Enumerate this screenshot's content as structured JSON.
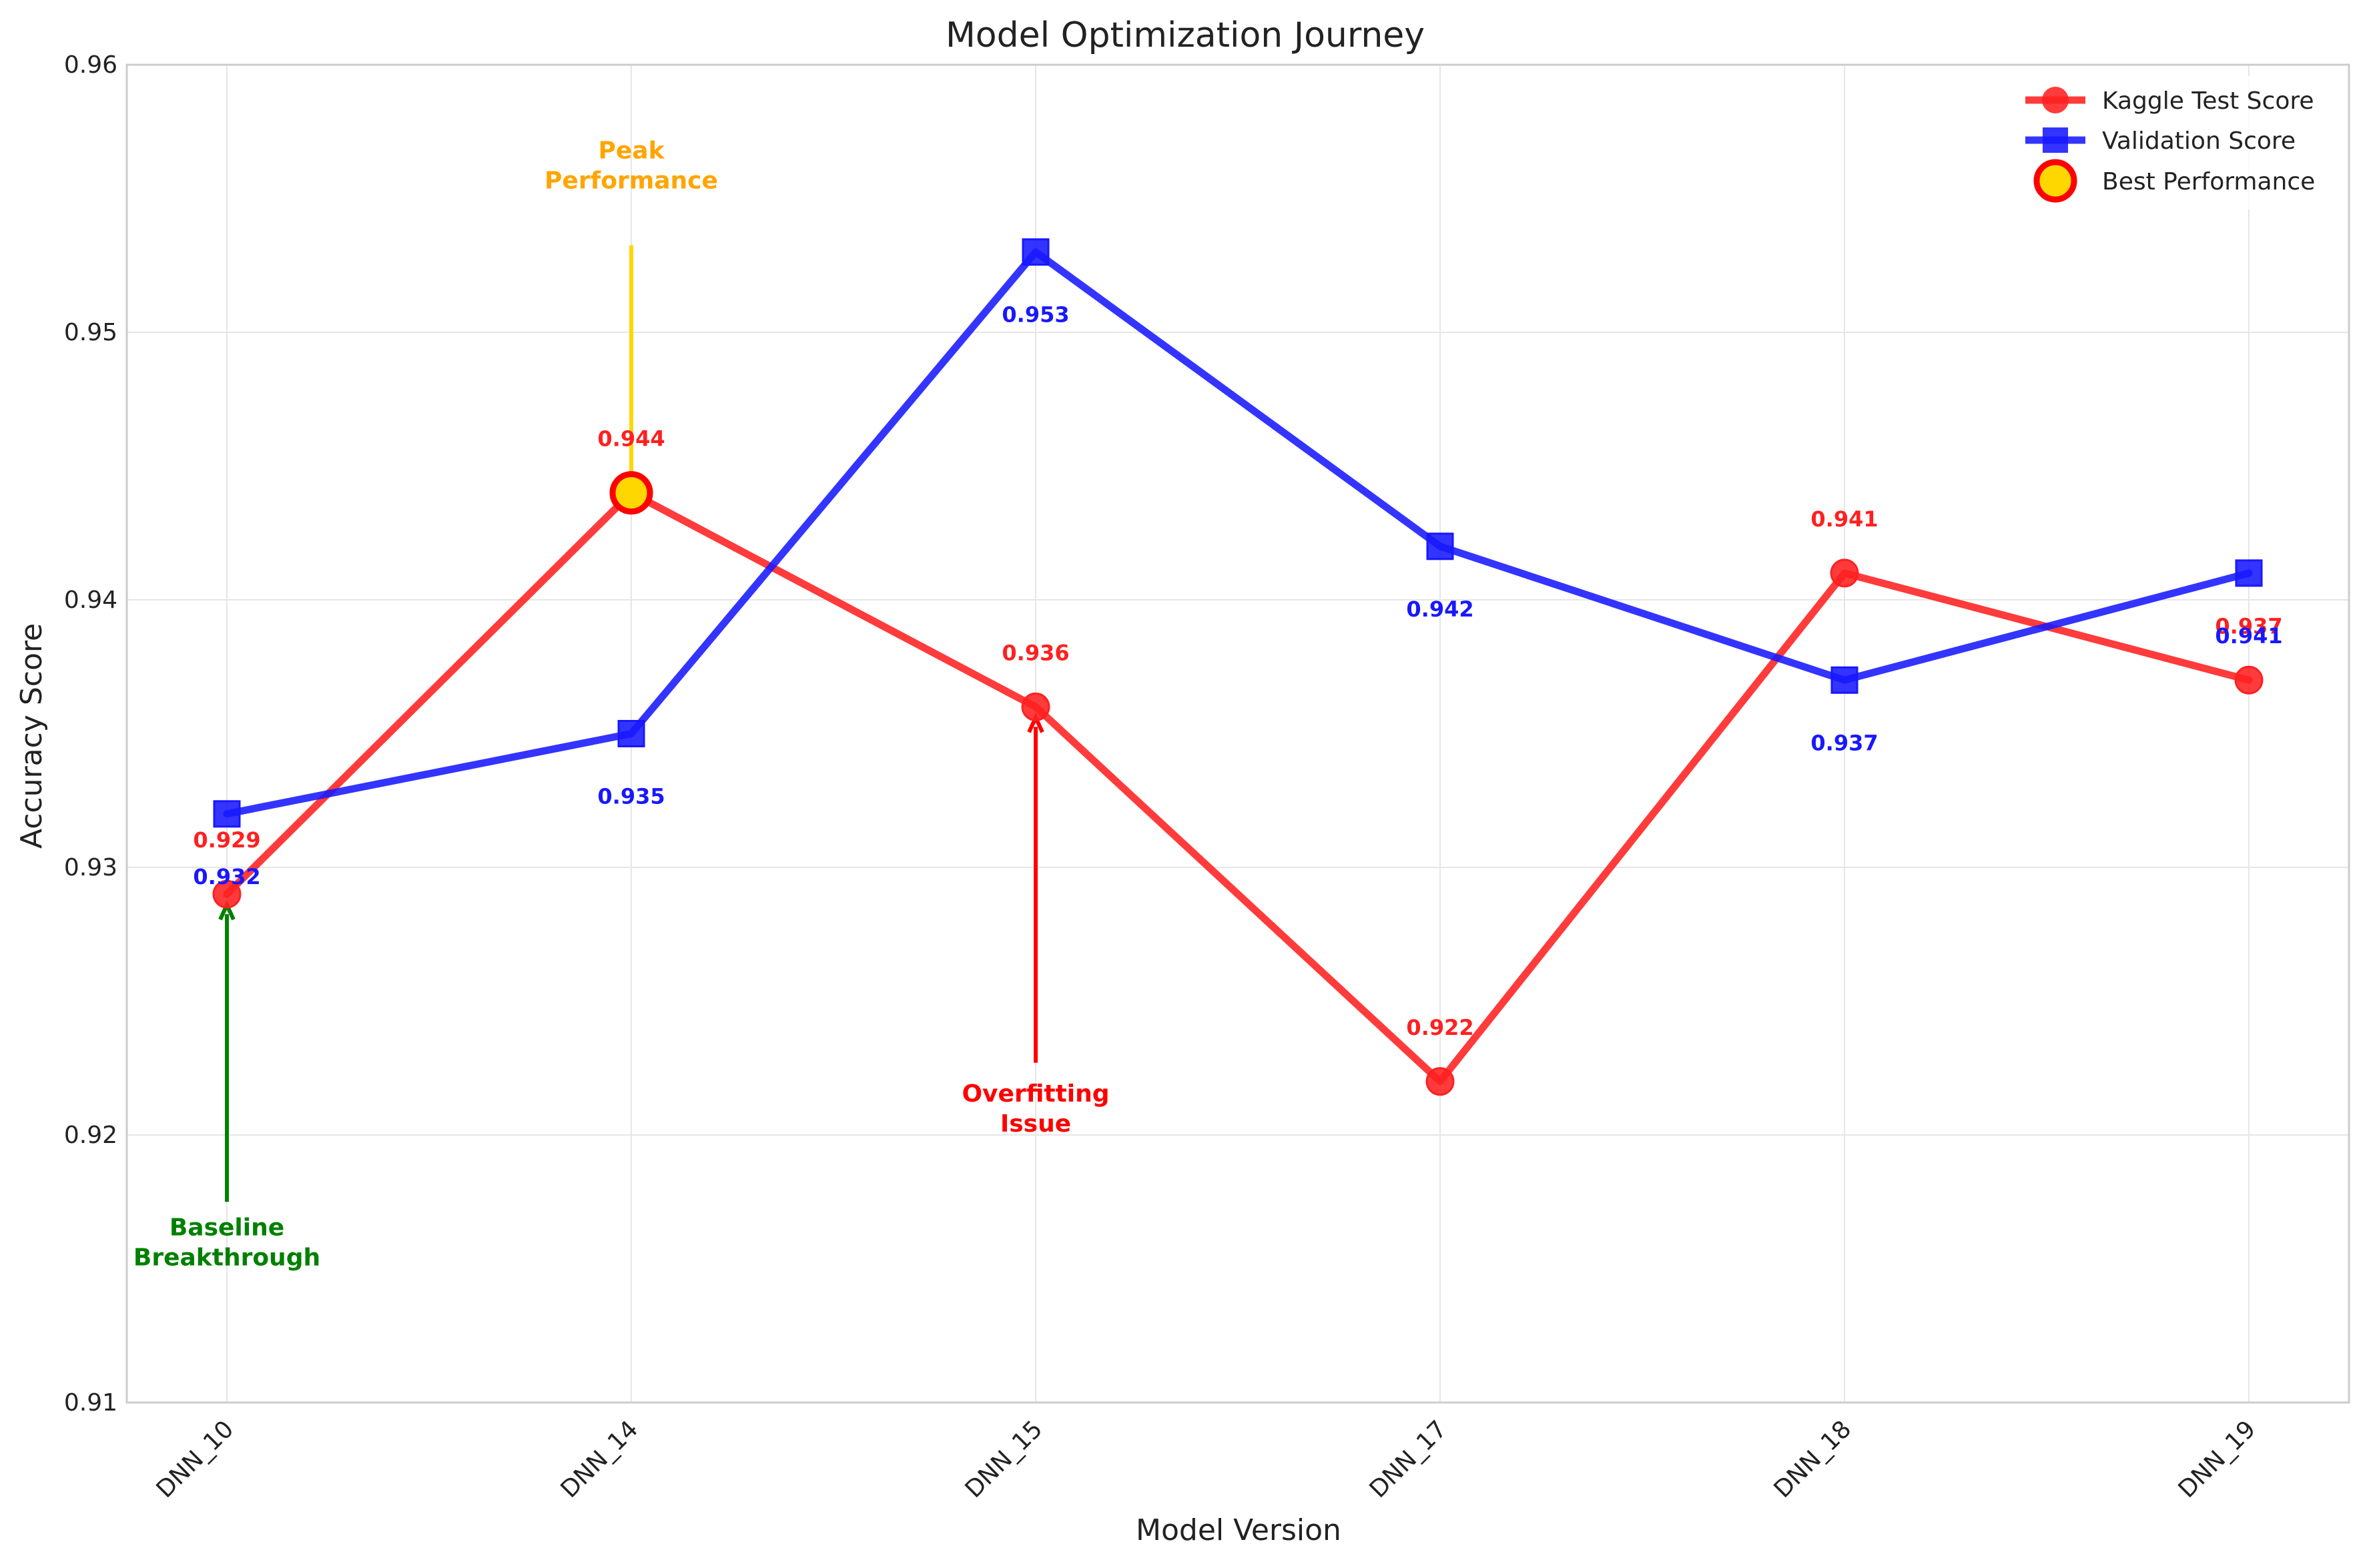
{
  "chart_data": {
    "type": "line",
    "title": "Model Optimization Journey",
    "xlabel": "Model Version",
    "ylabel": "Accuracy Score",
    "categories": [
      "DNN_10",
      "DNN_14",
      "DNN_15",
      "DNN_17",
      "DNN_18",
      "DNN_19"
    ],
    "ylim": [
      0.91,
      0.96
    ],
    "yticks": [
      0.91,
      0.92,
      0.93,
      0.94,
      0.95,
      0.96
    ],
    "ytick_labels": [
      "0.91",
      "0.92",
      "0.93",
      "0.94",
      "0.95",
      "0.96"
    ],
    "grid": true,
    "legend_position": "top-right",
    "series": [
      {
        "name": "Kaggle Test Score",
        "color": "#ff2020",
        "marker": "circle",
        "values": [
          0.929,
          0.944,
          0.936,
          0.922,
          0.941,
          0.937
        ],
        "value_labels": [
          "0.929",
          "0.944",
          "0.936",
          "0.922",
          "0.941",
          "0.937"
        ],
        "label_placement": [
          "above",
          "above",
          "above",
          "above",
          "above",
          "above"
        ]
      },
      {
        "name": "Validation Score",
        "color": "#1818ff",
        "marker": "square",
        "values": [
          0.932,
          0.935,
          0.953,
          0.942,
          0.937,
          0.941
        ],
        "value_labels": [
          "0.932",
          "0.935",
          "0.953",
          "0.942",
          "0.937",
          "0.941"
        ],
        "label_placement": [
          "below",
          "below",
          "below",
          "below",
          "below",
          "below"
        ]
      }
    ],
    "best_point": {
      "name": "Best Performance",
      "category": "DNN_14",
      "value": 0.944,
      "fill": "#ffd700",
      "edge": "#ff0000"
    },
    "annotations": [
      {
        "text": [
          "Baseline",
          "Breakthrough"
        ],
        "color": "#008000",
        "category": "DNN_10",
        "point_value": 0.929,
        "text_value": 0.917,
        "arrow": true
      },
      {
        "text": [
          "Peak",
          "Performance"
        ],
        "color": "#ffa500",
        "line_color": "#ffd700",
        "category": "DNN_14",
        "point_value": 0.944,
        "text_value": 0.955,
        "arrow": false
      },
      {
        "text": [
          "Overfitting",
          "Issue"
        ],
        "color": "#ff0000",
        "category": "DNN_15",
        "point_value": 0.936,
        "text_value": 0.922,
        "arrow": true
      }
    ]
  }
}
